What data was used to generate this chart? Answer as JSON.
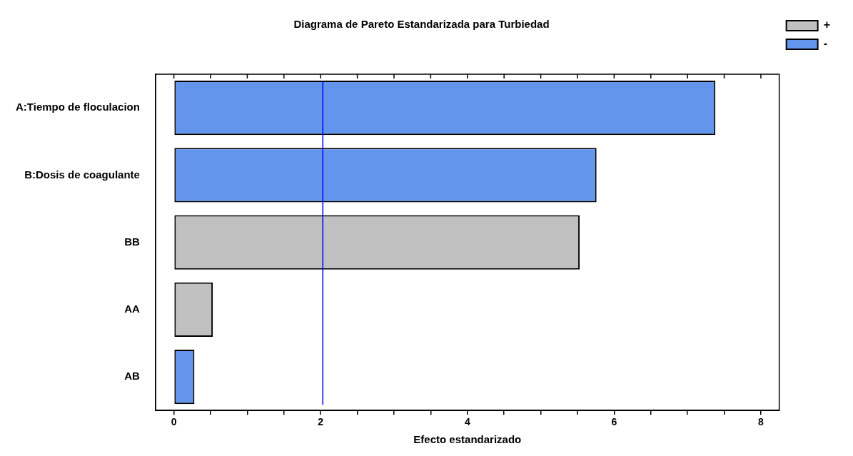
{
  "chart_data": {
    "type": "bar",
    "orientation": "horizontal",
    "stacked": true,
    "title": "Diagrama de Pareto Estandarizada para Turbiedad",
    "xlabel": "Efecto estandarizado",
    "categories": [
      "A:Tiempo de floculacion",
      "B:Dosis de coagulante",
      "BB",
      "AA",
      "AB"
    ],
    "series": [
      {
        "name": "+",
        "color": "#c0c0c0",
        "values": [
          null,
          null,
          5.53,
          0.53,
          null
        ]
      },
      {
        "name": "-",
        "color": "#6495ed",
        "values": [
          7.38,
          5.76,
          null,
          null,
          0.28
        ]
      }
    ],
    "xlim": [
      -0.25,
      8.25
    ],
    "xticks": [
      0,
      {
        "value": 0.5,
        "label": null
      },
      {
        "value": 1,
        "label": null
      },
      {
        "value": 1.5,
        "label": null
      },
      2,
      {
        "value": 2.5,
        "label": null
      },
      {
        "value": 3,
        "label": null
      },
      {
        "value": 3.5,
        "label": null
      },
      4,
      {
        "value": 4.5,
        "label": null
      },
      {
        "value": 5,
        "label": null
      },
      {
        "value": 5.5,
        "label": null
      },
      6,
      {
        "value": 6.5,
        "label": null
      },
      {
        "value": 7,
        "label": null
      },
      {
        "value": 7.5,
        "label": null
      },
      8
    ],
    "ref_lines": [
      {
        "axis": "x",
        "value": 2.03,
        "color": "#0000ff"
      }
    ],
    "grid": false,
    "legend": "top right"
  }
}
